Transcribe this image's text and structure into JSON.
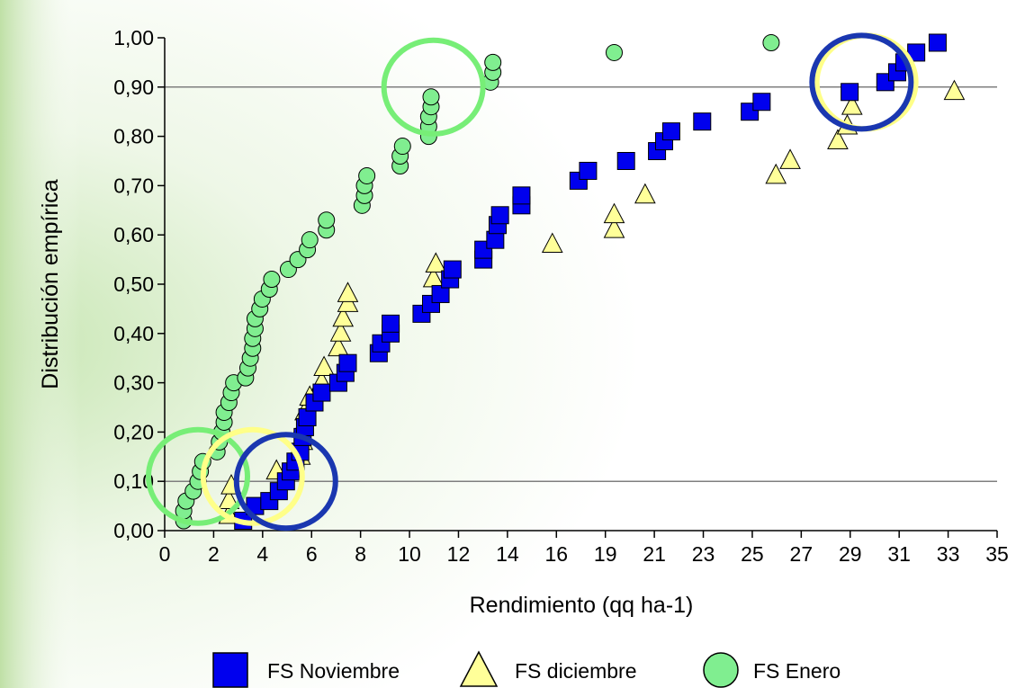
{
  "chart_data": {
    "type": "scatter",
    "title": "",
    "xlabel": "Rendimiento (qq ha-1)",
    "ylabel": "Distribución empírica",
    "xlim": [
      0,
      35
    ],
    "ylim": [
      0,
      1
    ],
    "x_ticks": [
      "0",
      "2",
      "4",
      "6",
      "8",
      "10",
      "12",
      "14",
      "16",
      "19",
      "21",
      "23",
      "25",
      "27",
      "29",
      "31",
      "33",
      "35"
    ],
    "y_ticks": [
      "0,00",
      "0,10",
      "0,20",
      "0,30",
      "0,40",
      "0,50",
      "0,60",
      "0,70",
      "0,80",
      "0,90",
      "1,00"
    ],
    "reference_lines_y": [
      0.1,
      0.9
    ],
    "grid": false,
    "legend_position": "bottom-center",
    "series": [
      {
        "name": "FS Noviembre",
        "marker": "square",
        "color": "#0000ee",
        "points": [
          [
            3.3,
            0.02
          ],
          [
            3.8,
            0.05
          ],
          [
            4.4,
            0.06
          ],
          [
            4.8,
            0.08
          ],
          [
            5.1,
            0.1
          ],
          [
            5.3,
            0.12
          ],
          [
            5.5,
            0.14
          ],
          [
            5.7,
            0.16
          ],
          [
            5.8,
            0.19
          ],
          [
            5.9,
            0.21
          ],
          [
            6.0,
            0.23
          ],
          [
            6.3,
            0.26
          ],
          [
            6.6,
            0.28
          ],
          [
            7.3,
            0.3
          ],
          [
            7.6,
            0.32
          ],
          [
            7.7,
            0.34
          ],
          [
            9.0,
            0.36
          ],
          [
            9.1,
            0.38
          ],
          [
            9.5,
            0.4
          ],
          [
            9.5,
            0.42
          ],
          [
            10.8,
            0.44
          ],
          [
            11.2,
            0.46
          ],
          [
            11.6,
            0.48
          ],
          [
            12.0,
            0.51
          ],
          [
            12.1,
            0.53
          ],
          [
            13.4,
            0.55
          ],
          [
            13.4,
            0.57
          ],
          [
            13.9,
            0.59
          ],
          [
            14.0,
            0.62
          ],
          [
            14.1,
            0.64
          ],
          [
            15.0,
            0.66
          ],
          [
            15.0,
            0.68
          ],
          [
            17.4,
            0.71
          ],
          [
            17.8,
            0.73
          ],
          [
            19.4,
            0.75
          ],
          [
            20.7,
            0.77
          ],
          [
            21.0,
            0.79
          ],
          [
            21.3,
            0.81
          ],
          [
            22.6,
            0.83
          ],
          [
            24.6,
            0.85
          ],
          [
            25.1,
            0.87
          ],
          [
            28.8,
            0.89
          ],
          [
            30.3,
            0.91
          ],
          [
            30.8,
            0.93
          ],
          [
            31.1,
            0.95
          ],
          [
            31.6,
            0.97
          ],
          [
            32.5,
            0.99
          ]
        ]
      },
      {
        "name": "FS diciembre",
        "marker": "triangle",
        "color": "#ffff99",
        "points": [
          [
            2.7,
            0.03
          ],
          [
            2.7,
            0.06
          ],
          [
            2.8,
            0.09
          ],
          [
            4.7,
            0.12
          ],
          [
            5.7,
            0.15
          ],
          [
            5.8,
            0.18
          ],
          [
            5.8,
            0.21
          ],
          [
            5.9,
            0.24
          ],
          [
            6.1,
            0.27
          ],
          [
            6.6,
            0.3
          ],
          [
            6.7,
            0.33
          ],
          [
            7.3,
            0.37
          ],
          [
            7.4,
            0.4
          ],
          [
            7.5,
            0.43
          ],
          [
            7.7,
            0.46
          ],
          [
            7.7,
            0.48
          ],
          [
            11.3,
            0.51
          ],
          [
            11.4,
            0.54
          ],
          [
            16.3,
            0.58
          ],
          [
            18.9,
            0.61
          ],
          [
            18.9,
            0.64
          ],
          [
            20.2,
            0.68
          ],
          [
            25.7,
            0.72
          ],
          [
            26.3,
            0.75
          ],
          [
            28.3,
            0.79
          ],
          [
            28.7,
            0.82
          ],
          [
            28.9,
            0.86
          ],
          [
            33.2,
            0.89
          ]
        ]
      },
      {
        "name": "FS Enero",
        "marker": "circle",
        "color": "#80ee90",
        "points": [
          [
            0.8,
            0.02
          ],
          [
            0.8,
            0.04
          ],
          [
            0.9,
            0.06
          ],
          [
            1.2,
            0.08
          ],
          [
            1.4,
            0.1
          ],
          [
            1.5,
            0.12
          ],
          [
            1.6,
            0.14
          ],
          [
            2.2,
            0.16
          ],
          [
            2.3,
            0.18
          ],
          [
            2.4,
            0.2
          ],
          [
            2.5,
            0.22
          ],
          [
            2.5,
            0.24
          ],
          [
            2.7,
            0.26
          ],
          [
            2.8,
            0.28
          ],
          [
            2.9,
            0.3
          ],
          [
            3.4,
            0.31
          ],
          [
            3.5,
            0.33
          ],
          [
            3.6,
            0.35
          ],
          [
            3.7,
            0.37
          ],
          [
            3.7,
            0.39
          ],
          [
            3.8,
            0.41
          ],
          [
            3.8,
            0.43
          ],
          [
            4.0,
            0.45
          ],
          [
            4.1,
            0.47
          ],
          [
            4.4,
            0.49
          ],
          [
            4.5,
            0.51
          ],
          [
            5.2,
            0.53
          ],
          [
            5.6,
            0.55
          ],
          [
            6.0,
            0.57
          ],
          [
            6.1,
            0.59
          ],
          [
            6.8,
            0.61
          ],
          [
            6.8,
            0.63
          ],
          [
            8.3,
            0.66
          ],
          [
            8.4,
            0.68
          ],
          [
            8.4,
            0.7
          ],
          [
            8.5,
            0.72
          ],
          [
            9.9,
            0.74
          ],
          [
            9.9,
            0.76
          ],
          [
            10.0,
            0.78
          ],
          [
            11.1,
            0.8
          ],
          [
            11.1,
            0.82
          ],
          [
            11.1,
            0.84
          ],
          [
            11.2,
            0.86
          ],
          [
            11.2,
            0.88
          ],
          [
            13.7,
            0.91
          ],
          [
            13.8,
            0.93
          ],
          [
            13.8,
            0.95
          ],
          [
            18.9,
            0.97
          ],
          [
            25.5,
            0.99
          ]
        ]
      }
    ],
    "annotations": [
      {
        "type": "ellipse",
        "series": "FS Enero",
        "cx": 1.4,
        "cy": 0.11,
        "color": "#77ee77"
      },
      {
        "type": "ellipse",
        "series": "FS diciembre",
        "cx": 3.7,
        "cy": 0.11,
        "color": "#ffff88"
      },
      {
        "type": "ellipse",
        "series": "FS Noviembre",
        "cx": 5.1,
        "cy": 0.1,
        "color": "#1a37b0"
      },
      {
        "type": "ellipse",
        "series": "FS Enero",
        "cx": 11.3,
        "cy": 0.9,
        "color": "#77ee77"
      },
      {
        "type": "ellipse",
        "series": "FS diciembre",
        "cx": 29.5,
        "cy": 0.91,
        "color": "#ffff88"
      },
      {
        "type": "ellipse",
        "series": "FS Noviembre",
        "cx": 29.3,
        "cy": 0.91,
        "color": "#1a37b0"
      }
    ]
  }
}
